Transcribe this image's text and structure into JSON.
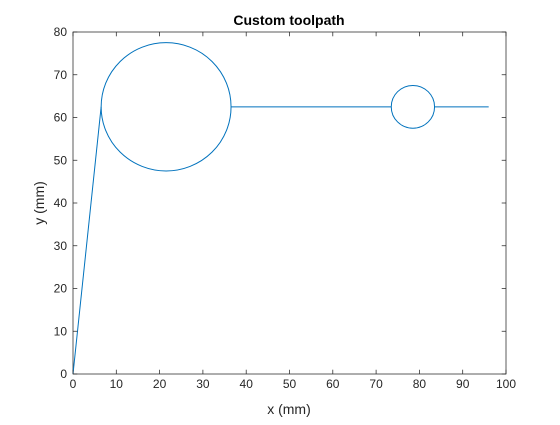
{
  "chart_data": {
    "type": "line",
    "title": "Custom toolpath",
    "xlabel": "x (mm)",
    "ylabel": "y (mm)",
    "xlim": [
      0,
      100
    ],
    "ylim": [
      0,
      80
    ],
    "xticks": [
      "0",
      "10",
      "20",
      "30",
      "40",
      "50",
      "60",
      "70",
      "80",
      "90",
      "100"
    ],
    "yticks": [
      "0",
      "10",
      "20",
      "30",
      "40",
      "50",
      "60",
      "70",
      "80"
    ],
    "grid": false,
    "legend": "none",
    "series": [
      {
        "name": "toolpath",
        "color": "#0072BD",
        "segments": [
          {
            "kind": "line",
            "from": [
              0,
              0
            ],
            "to": [
              6.5,
              62.5
            ]
          },
          {
            "kind": "arc",
            "center": [
              21.5,
              62.5
            ],
            "radius": 15,
            "start": [
              6.5,
              62.5
            ],
            "end": [
              36.5,
              62.5
            ],
            "full": true
          },
          {
            "kind": "line",
            "from": [
              36.5,
              62.5
            ],
            "to": [
              73.5,
              62.5
            ]
          },
          {
            "kind": "arc",
            "center": [
              78.5,
              62.5
            ],
            "radius": 5,
            "start": [
              73.5,
              62.5
            ],
            "end": [
              83.5,
              62.5
            ],
            "full": true
          },
          {
            "kind": "line",
            "from": [
              83.5,
              62.5
            ],
            "to": [
              96,
              62.5
            ]
          }
        ]
      }
    ]
  }
}
